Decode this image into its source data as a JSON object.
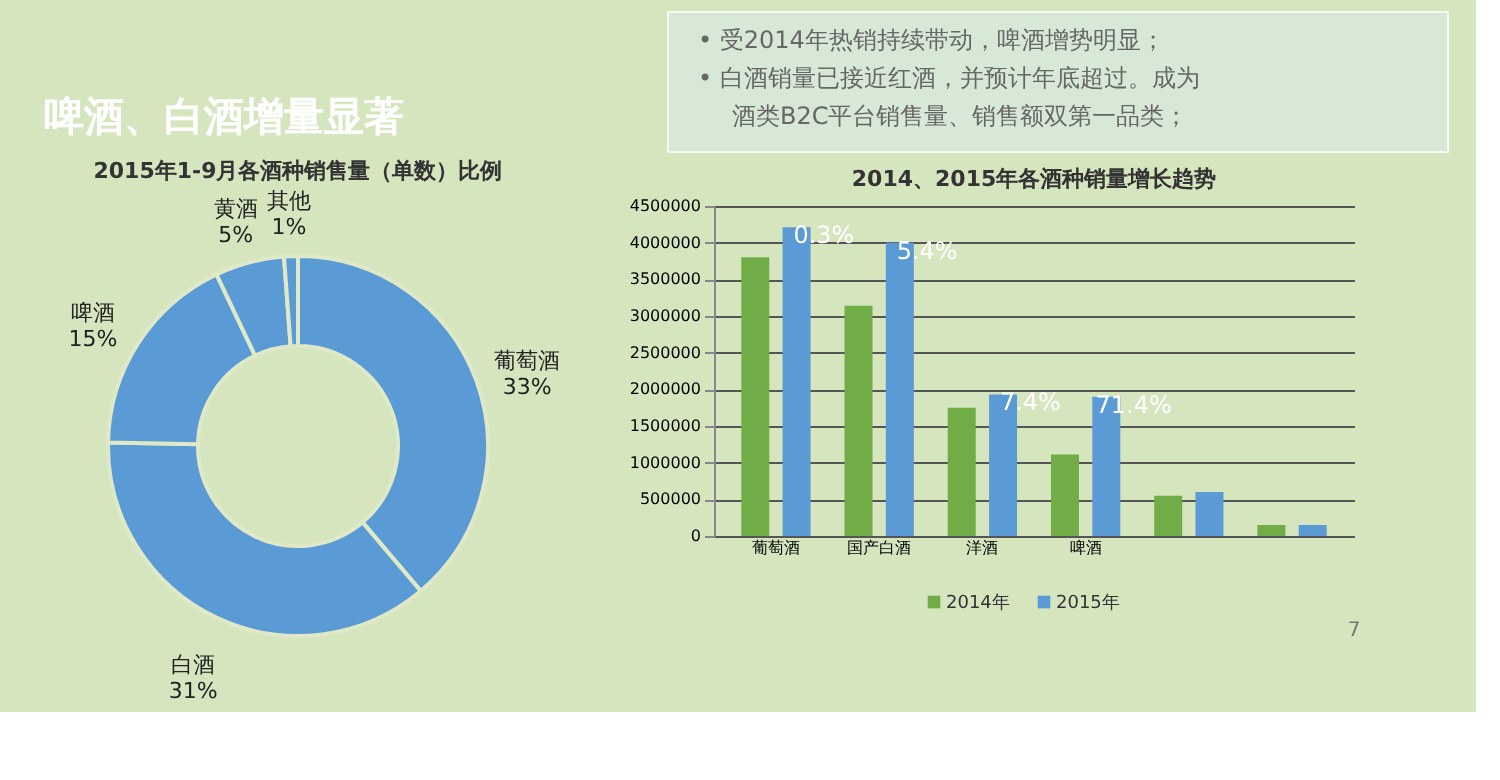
{
  "chart_data": [
    {
      "type": "other",
      "title": "啤酒、白酒增量显著",
      "annotations": [
        "•   受2014年热销持续带动，啤酒增势明显；",
        "•   白酒销量已接近红酒，并预计年底超过。成为酒类B2C平台销售量、销售额双第一品类；"
      ]
    },
    {
      "type": "donut",
      "title": "2015年1-9月各酒种销售量（单数）比例",
      "categories": [
        "葡萄酒",
        "白酒",
        "啤酒",
        "黄酒",
        "其他"
      ],
      "values": [
        33,
        31,
        15,
        5,
        1
      ],
      "value_labels": [
        "33%",
        "31%",
        "15%",
        "5%",
        "1%"
      ],
      "colors": [
        "#5b9bd5",
        "#5b9bd5",
        "#5b9bd5",
        "#5b9bd5",
        "#5b9bd5"
      ],
      "legend": false
    },
    {
      "type": "bar",
      "title": "2014、2015年各酒种销量增长趋势",
      "categories": [
        "葡萄酒",
        "国产白酒",
        "洋酒",
        "啤酒",
        null,
        null
      ],
      "series": [
        {
          "name": "2014年",
          "color": "#70ad47",
          "values": [
            3800000,
            3140000,
            1750000,
            1110000,
            550000,
            150000
          ]
        },
        {
          "name": "2015年",
          "color": "#5b9bd5",
          "values": [
            4210000,
            4000000,
            1930000,
            1900000,
            600000,
            150000
          ]
        }
      ],
      "ylim": [
        0,
        4500000
      ],
      "yticks": [
        0,
        500000,
        1000000,
        1500000,
        2000000,
        2500000,
        3000000,
        3500000,
        4000000,
        4500000
      ],
      "grid": "y",
      "legend": "bottom",
      "annotations": [
        "0.3%",
        "5.4%",
        "7.4%",
        "71.4%",
        "7"
      ]
    }
  ]
}
